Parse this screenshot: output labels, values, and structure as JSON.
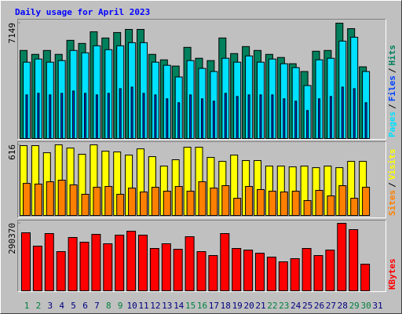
{
  "chart_data": {
    "type": "bar",
    "title": "Daily usage for April 2023",
    "categories": [
      "1",
      "2",
      "3",
      "4",
      "5",
      "6",
      "7",
      "8",
      "9",
      "10",
      "11",
      "12",
      "13",
      "14",
      "15",
      "16",
      "17",
      "18",
      "19",
      "20",
      "21",
      "22",
      "23",
      "24",
      "25",
      "26",
      "27",
      "28",
      "29",
      "30",
      "31"
    ],
    "category_colors": [
      "#008040",
      "#008040",
      "#000080",
      "#000080",
      "#000080",
      "#000080",
      "#000080",
      "#008040",
      "#008040",
      "#000080",
      "#000080",
      "#000080",
      "#000080",
      "#000080",
      "#008040",
      "#008040",
      "#000080",
      "#000080",
      "#000080",
      "#000080",
      "#000080",
      "#008040",
      "#008040",
      "#000080",
      "#000080",
      "#000080",
      "#000080",
      "#000080",
      "#008040",
      "#008040",
      "#000080"
    ],
    "legend_separator": "/",
    "panels": [
      {
        "ylim": [
          0,
          7149
        ],
        "yticks": [
          7149
        ],
        "legend": [
          "Pages",
          "Files",
          "Hits"
        ],
        "series": [
          {
            "name": "Hits",
            "color": "#00805c",
            "values": [
              5458,
              5216,
              5458,
              5216,
              6086,
              5893,
              6617,
              6231,
              6569,
              6762,
              6762,
              5216,
              4878,
              4492,
              5651,
              4975,
              4830,
              6231,
              5265,
              5699,
              5458,
              5216,
              5023,
              4637,
              4154,
              5410,
              5458,
              7149,
              6810,
              4444,
              null
            ]
          },
          {
            "name": "Pages",
            "color": "#00e0ff",
            "values": [
              4733,
              4927,
              4733,
              4830,
              5458,
              5313,
              5748,
              5506,
              5748,
              5941,
              5941,
              4733,
              4540,
              3816,
              4830,
              4347,
              4154,
              4975,
              4733,
              5120,
              4733,
              4927,
              4637,
              4395,
              3284,
              4878,
              4975,
              6038,
              6279,
              4154,
              null
            ]
          },
          {
            "name": "Files",
            "color": "#0040ff",
            "values": [
              2705,
              2801,
              2705,
              2801,
              2946,
              2801,
              2705,
              2801,
              3091,
              3188,
              2801,
              2705,
              2463,
              2222,
              2705,
              2463,
              2318,
              2801,
              2608,
              2705,
              2705,
              2705,
              2463,
              2318,
              1739,
              2463,
              2608,
              3188,
              3091,
              2222,
              null
            ]
          }
        ]
      },
      {
        "ylim": [
          0,
          616
        ],
        "yticks": [
          616
        ],
        "legend": [
          "Sites",
          "Visits"
        ],
        "series": [
          {
            "name": "Visits",
            "color": "#ffff00",
            "values": [
              609,
              609,
              547,
              616,
              588,
              534,
              616,
              561,
              554,
              527,
              581,
              513,
              431,
              486,
              595,
              595,
              506,
              472,
              527,
              479,
              479,
              431,
              431,
              424,
              431,
              417,
              431,
              417,
              472,
              472,
              null
            ]
          },
          {
            "name": "Sites",
            "color": "#ff8000",
            "values": [
              280,
              274,
              294,
              308,
              267,
              185,
              246,
              253,
              185,
              239,
              205,
              246,
              212,
              253,
              212,
              294,
              239,
              260,
              150,
              253,
              226,
              212,
              205,
              212,
              130,
              219,
              171,
              260,
              150,
              246,
              null
            ]
          }
        ]
      },
      {
        "ylim": [
          0,
          290370
        ],
        "yticks": [
          290370
        ],
        "legend": [
          "KBytes"
        ],
        "series": [
          {
            "name": "KBytes",
            "color": "#ff0000",
            "values": [
              249824,
              192432,
              246448,
              168800,
              229568,
              209312,
              243072,
              202560,
              239696,
              256576,
              239696,
              182304,
              202560,
              178928,
              232944,
              168800,
              151920,
              246448,
              182304,
              175552,
              162048,
              145168,
              124912,
              138416,
              182304,
              151920,
              175552,
              290370,
              263328,
              114784,
              null
            ]
          }
        ]
      }
    ]
  }
}
